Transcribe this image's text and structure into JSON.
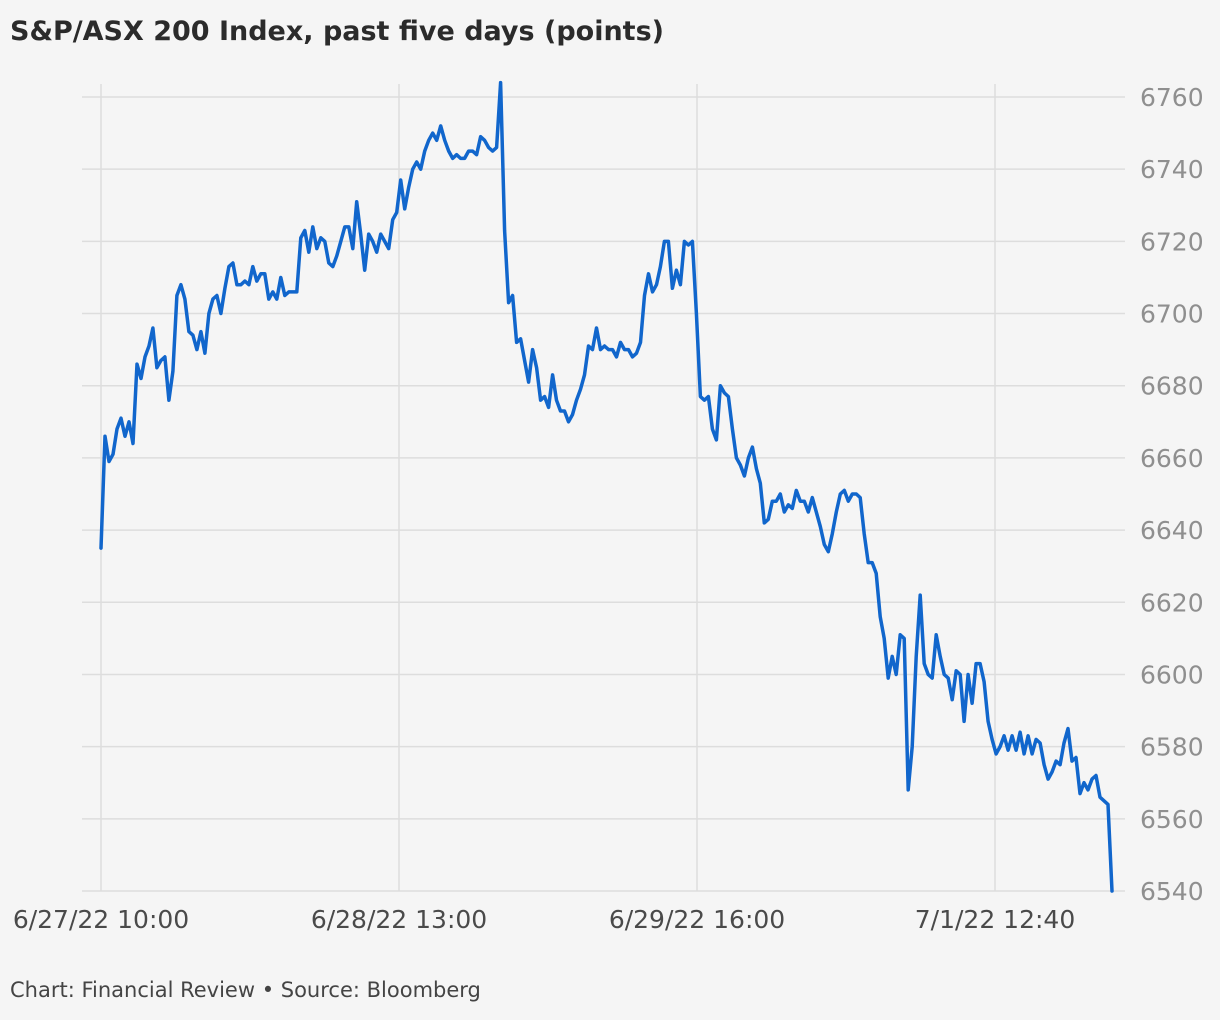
{
  "title": "S&P/ASX 200 Index, past five days (points)",
  "footer": "Chart: Financial Review • Source: Bloomberg",
  "colors": {
    "line": "#1166cc",
    "grid": "#dddddd",
    "background": "#f5f5f5"
  },
  "chart_data": {
    "type": "line",
    "title": "S&P/ASX 200 Index, past five days (points)",
    "ylim": [
      6540,
      6760
    ],
    "yticks": [
      6540,
      6560,
      6580,
      6600,
      6620,
      6640,
      6660,
      6680,
      6700,
      6720,
      6740,
      6760
    ],
    "xtick_labels": [
      "6/27/22 10:00",
      "6/28/22 13:00",
      "6/29/22 16:00",
      "7/1/22 12:40"
    ],
    "grid": true,
    "y_axis_side": "right",
    "series": [
      {
        "values": [
          6635,
          6666,
          6659,
          6661,
          6668,
          6671,
          6666,
          6670,
          6664,
          6686,
          6682,
          6688,
          6691,
          6696,
          6685,
          6687,
          6688,
          6676,
          6684,
          6705,
          6708,
          6704,
          6695,
          6694,
          6690,
          6695,
          6689,
          6700,
          6704,
          6705,
          6700,
          6707,
          6713,
          6714,
          6708,
          6708,
          6709,
          6708,
          6713,
          6709,
          6711,
          6711,
          6704,
          6706,
          6704,
          6710,
          6705,
          6706,
          6706,
          6706,
          6721,
          6723,
          6717,
          6724,
          6718,
          6721,
          6720,
          6714,
          6713,
          6716,
          6720,
          6724,
          6724,
          6718,
          6731,
          6722,
          6712,
          6722,
          6720,
          6717,
          6722,
          6720,
          6718,
          6726,
          6728,
          6737,
          6729,
          6735,
          6740,
          6742,
          6740,
          6745,
          6748,
          6750,
          6748,
          6752,
          6748,
          6745,
          6743,
          6744,
          6743,
          6743,
          6745,
          6745,
          6744,
          6749,
          6748,
          6746,
          6745,
          6746,
          6764,
          6723,
          6703,
          6705,
          6692,
          6693,
          6687,
          6681,
          6690,
          6685,
          6676,
          6677,
          6674,
          6683,
          6676,
          6673,
          6673,
          6670,
          6672,
          6676,
          6679,
          6683,
          6691,
          6690,
          6696,
          6690,
          6691,
          6690,
          6690,
          6688,
          6692,
          6690,
          6690,
          6688,
          6689,
          6692,
          6705,
          6711,
          6706,
          6708,
          6713,
          6720,
          6720,
          6707,
          6712,
          6708,
          6720,
          6719,
          6720,
          6700,
          6677,
          6676,
          6677,
          6668,
          6665,
          6680,
          6678,
          6677,
          6668,
          6660,
          6658,
          6655,
          6660,
          6663,
          6657,
          6653,
          6642,
          6643,
          6648,
          6648,
          6650,
          6645,
          6647,
          6646,
          6651,
          6648,
          6648,
          6645,
          6649,
          6645,
          6641,
          6636,
          6634,
          6639,
          6645,
          6650,
          6651,
          6648,
          6650,
          6650,
          6649,
          6639,
          6631,
          6631,
          6628,
          6616,
          6610,
          6599,
          6605,
          6600,
          6611,
          6610,
          6568,
          6580,
          6605,
          6622,
          6603,
          6600,
          6599,
          6611,
          6605,
          6600,
          6599,
          6593,
          6601,
          6600,
          6587,
          6600,
          6592,
          6603,
          6603,
          6598,
          6587,
          6582,
          6578,
          6580,
          6583,
          6579,
          6583,
          6579,
          6584,
          6578,
          6583,
          6578,
          6582,
          6581,
          6575,
          6571,
          6573,
          6576,
          6575,
          6581,
          6585,
          6576,
          6577,
          6567,
          6570,
          6568,
          6571,
          6572,
          6566,
          6565,
          6564,
          6540
        ]
      }
    ]
  }
}
